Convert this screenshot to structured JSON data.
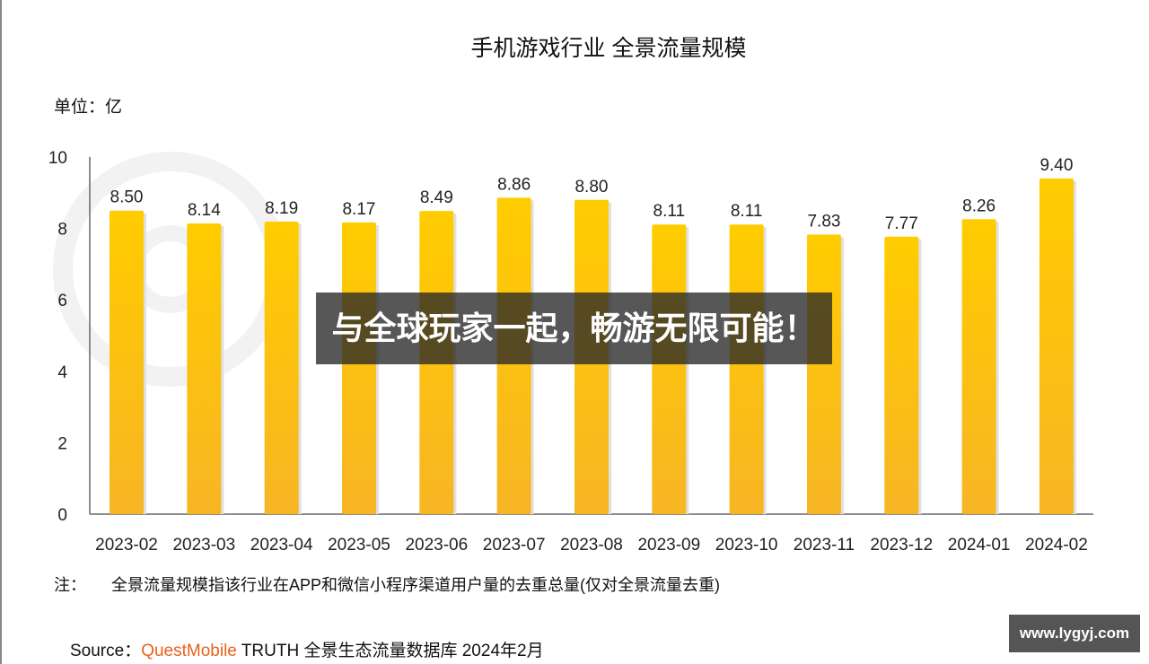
{
  "chart_data": {
    "type": "bar",
    "title": "手机游戏行业 全景流量规模",
    "unit_label": "单位：亿",
    "categories": [
      "2023-02",
      "2023-03",
      "2023-04",
      "2023-05",
      "2023-06",
      "2023-07",
      "2023-08",
      "2023-09",
      "2023-10",
      "2023-11",
      "2023-12",
      "2024-01",
      "2024-02"
    ],
    "values": [
      8.5,
      8.14,
      8.19,
      8.17,
      8.49,
      8.86,
      8.8,
      8.11,
      8.11,
      7.83,
      7.77,
      8.26,
      9.4
    ],
    "value_labels": [
      "8.50",
      "8.14",
      "8.19",
      "8.17",
      "8.49",
      "8.86",
      "8.80",
      "8.11",
      "8.11",
      "7.83",
      "7.77",
      "8.26",
      "9.40"
    ],
    "ylim": [
      0,
      10
    ],
    "yticks": [
      "0",
      "2",
      "4",
      "6",
      "8",
      "10"
    ],
    "grid": false,
    "bar_color": "#f9c20a",
    "watermark": "QUESTMOBILE"
  },
  "note": {
    "label": "注：",
    "text": "全景流量规模指该行业在APP和微信小程序渠道用户量的去重总量(仅对全景流量去重)"
  },
  "source": {
    "label": "Source：",
    "brand": "QuestMobile",
    "text": " TRUTH 全景生态流量数据库 2024年2月"
  },
  "overlay": {
    "banner": "与全球玩家一起，畅游无限可能！",
    "site_badge": "www.lygyj.com"
  }
}
